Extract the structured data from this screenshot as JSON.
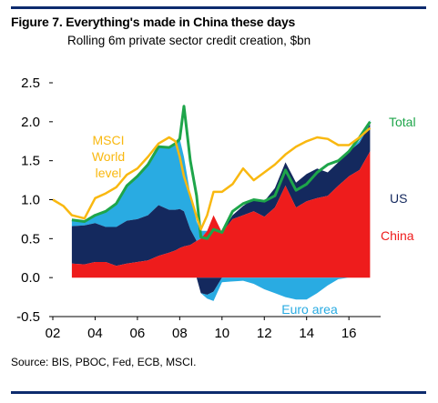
{
  "figure": {
    "title": "Figure 7. Everything's made in China these days",
    "subtitle": "Rolling 6m private sector credit creation, $bn",
    "source": "Source: BIS, PBOC, Fed, ECB, MSCI."
  },
  "colors": {
    "china": "#ee1c1c",
    "us": "#14295e",
    "euro": "#29abe2",
    "total": "#1ea54a",
    "msci": "#f9b810",
    "rule": "#0d2b6e"
  },
  "chart_data": {
    "type": "area",
    "title": "Figure 7. Everything's made in China these days",
    "subtitle": "Rolling 6m private sector credit creation, $bn",
    "x_range": [
      2002,
      2017.5
    ],
    "ylim": [
      -0.5,
      2.5
    ],
    "x_ticks": [
      "02",
      "04",
      "06",
      "08",
      "10",
      "12",
      "14",
      "16"
    ],
    "y_ticks": [
      "2.5",
      "2.0",
      "1.5",
      "1.0",
      "0.5",
      "0.0",
      "-0.5"
    ],
    "grid": false,
    "x": [
      2002.0,
      2002.5,
      2002.9,
      2003.5,
      2004.0,
      2004.5,
      2005.0,
      2005.5,
      2006.0,
      2006.5,
      2007.0,
      2007.5,
      2007.8,
      2008.0,
      2008.2,
      2008.5,
      2008.8,
      2009.0,
      2009.3,
      2009.6,
      2010.0,
      2010.5,
      2011.0,
      2011.5,
      2012.0,
      2012.5,
      2013.0,
      2013.5,
      2014.0,
      2014.5,
      2015.0,
      2015.5,
      2016.0,
      2016.5,
      2017.0
    ],
    "series": [
      {
        "name": "China",
        "values": [
          null,
          null,
          0.18,
          0.17,
          0.2,
          0.2,
          0.15,
          0.18,
          0.2,
          0.22,
          0.28,
          0.32,
          0.35,
          0.38,
          0.4,
          0.42,
          0.47,
          0.5,
          0.6,
          0.8,
          0.58,
          0.75,
          0.8,
          0.85,
          0.78,
          0.9,
          1.18,
          0.9,
          0.98,
          1.02,
          1.05,
          1.18,
          1.3,
          1.38,
          1.62
        ]
      },
      {
        "name": "US",
        "values": [
          null,
          null,
          0.48,
          0.5,
          0.5,
          0.45,
          0.5,
          0.55,
          0.55,
          0.58,
          0.65,
          0.55,
          0.52,
          0.5,
          0.45,
          0.2,
          0.0,
          -0.2,
          -0.22,
          -0.18,
          0.0,
          0.05,
          0.12,
          0.16,
          0.2,
          0.25,
          0.3,
          0.32,
          0.35,
          0.38,
          0.3,
          0.3,
          0.32,
          0.35,
          0.35
        ]
      },
      {
        "name": "Euro area",
        "values": [
          null,
          null,
          0.08,
          0.05,
          0.1,
          0.2,
          0.3,
          0.45,
          0.55,
          0.65,
          0.75,
          0.8,
          0.85,
          0.9,
          0.7,
          0.45,
          0.25,
          0.1,
          -0.05,
          -0.12,
          -0.06,
          -0.05,
          -0.04,
          -0.08,
          -0.15,
          -0.2,
          -0.25,
          -0.28,
          -0.28,
          -0.2,
          -0.1,
          -0.02,
          0.0,
          0.03,
          0.05
        ]
      },
      {
        "name": "Total",
        "values": [
          null,
          null,
          0.74,
          0.72,
          0.8,
          0.85,
          0.95,
          1.18,
          1.3,
          1.45,
          1.68,
          1.67,
          1.72,
          1.78,
          2.2,
          1.5,
          1.05,
          0.52,
          0.5,
          0.62,
          0.58,
          0.85,
          0.95,
          1.0,
          0.98,
          1.05,
          1.38,
          1.12,
          1.2,
          1.35,
          1.45,
          1.5,
          1.62,
          1.8,
          2.0
        ]
      },
      {
        "name": "MSCI World level",
        "values": [
          1.0,
          0.92,
          0.8,
          0.76,
          1.02,
          1.08,
          1.16,
          1.32,
          1.4,
          1.55,
          1.72,
          1.8,
          1.75,
          1.55,
          1.3,
          1.05,
          0.78,
          0.62,
          0.8,
          1.1,
          1.1,
          1.2,
          1.4,
          1.25,
          1.35,
          1.45,
          1.58,
          1.68,
          1.75,
          1.8,
          1.78,
          1.7,
          1.7,
          1.8,
          1.92
        ]
      }
    ],
    "labels": {
      "total": "Total",
      "us": "US",
      "china": "China",
      "euro": "Euro area",
      "msci": [
        "MSCI",
        "World",
        "level"
      ]
    }
  }
}
